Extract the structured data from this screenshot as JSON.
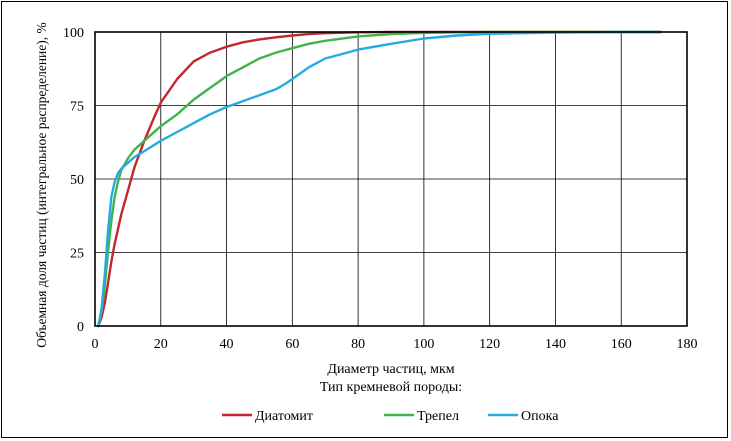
{
  "chart_data": {
    "type": "line",
    "xlabel": "Диаметр частиц, мкм",
    "ylabel": "Объемная доля частиц (интегральное распределение), %",
    "legend_title": "Тип кремневой породы:",
    "legend_placement": "bottom",
    "grid": true,
    "xlim": [
      0,
      180
    ],
    "ylim": [
      0,
      100
    ],
    "xticks": [
      0,
      20,
      40,
      60,
      80,
      100,
      120,
      140,
      160,
      180
    ],
    "yticks": [
      0,
      25,
      50,
      75,
      100
    ],
    "series": [
      {
        "name": "Диатомит",
        "color": "#c0282d",
        "x": [
          1,
          2,
          3,
          4,
          5,
          6,
          8,
          10,
          12,
          15,
          18,
          20,
          25,
          30,
          35,
          40,
          45,
          50,
          55,
          60,
          65,
          70,
          80,
          90,
          100,
          120,
          140,
          160,
          172
        ],
        "y": [
          0,
          3,
          8,
          15,
          22,
          28,
          38,
          46,
          54,
          63,
          71,
          76,
          84,
          90,
          93,
          95,
          96.5,
          97.5,
          98.2,
          98.8,
          99.3,
          99.6,
          99.9,
          100,
          100,
          100,
          100,
          100,
          100
        ]
      },
      {
        "name": "Трепел",
        "color": "#3db54a",
        "x": [
          1,
          2,
          3,
          4,
          5,
          6,
          7,
          8,
          10,
          12,
          15,
          20,
          25,
          30,
          35,
          40,
          45,
          50,
          55,
          60,
          65,
          70,
          80,
          90,
          100,
          110,
          120,
          140,
          160,
          172
        ],
        "y": [
          0,
          5,
          14,
          26,
          36,
          44,
          49,
          53,
          57,
          60,
          63,
          68,
          72,
          77,
          81,
          85,
          88,
          91,
          93,
          94.5,
          96,
          97,
          98.5,
          99.3,
          99.7,
          99.9,
          100,
          100,
          100,
          100
        ]
      },
      {
        "name": "Опока",
        "color": "#27aae1",
        "x": [
          1,
          2,
          3,
          4,
          5,
          6,
          7,
          8,
          10,
          12,
          15,
          20,
          25,
          30,
          35,
          40,
          45,
          50,
          55,
          58,
          60,
          65,
          70,
          75,
          80,
          90,
          100,
          110,
          120,
          140,
          160,
          172
        ],
        "y": [
          0,
          6,
          18,
          33,
          44,
          49,
          52,
          53.5,
          55.5,
          57.5,
          59.5,
          63,
          66,
          69,
          72,
          74.5,
          76.5,
          78.5,
          80.5,
          82.5,
          84,
          88,
          91,
          92.5,
          94,
          96,
          97.8,
          98.8,
          99.4,
          99.8,
          100,
          100
        ]
      }
    ]
  }
}
